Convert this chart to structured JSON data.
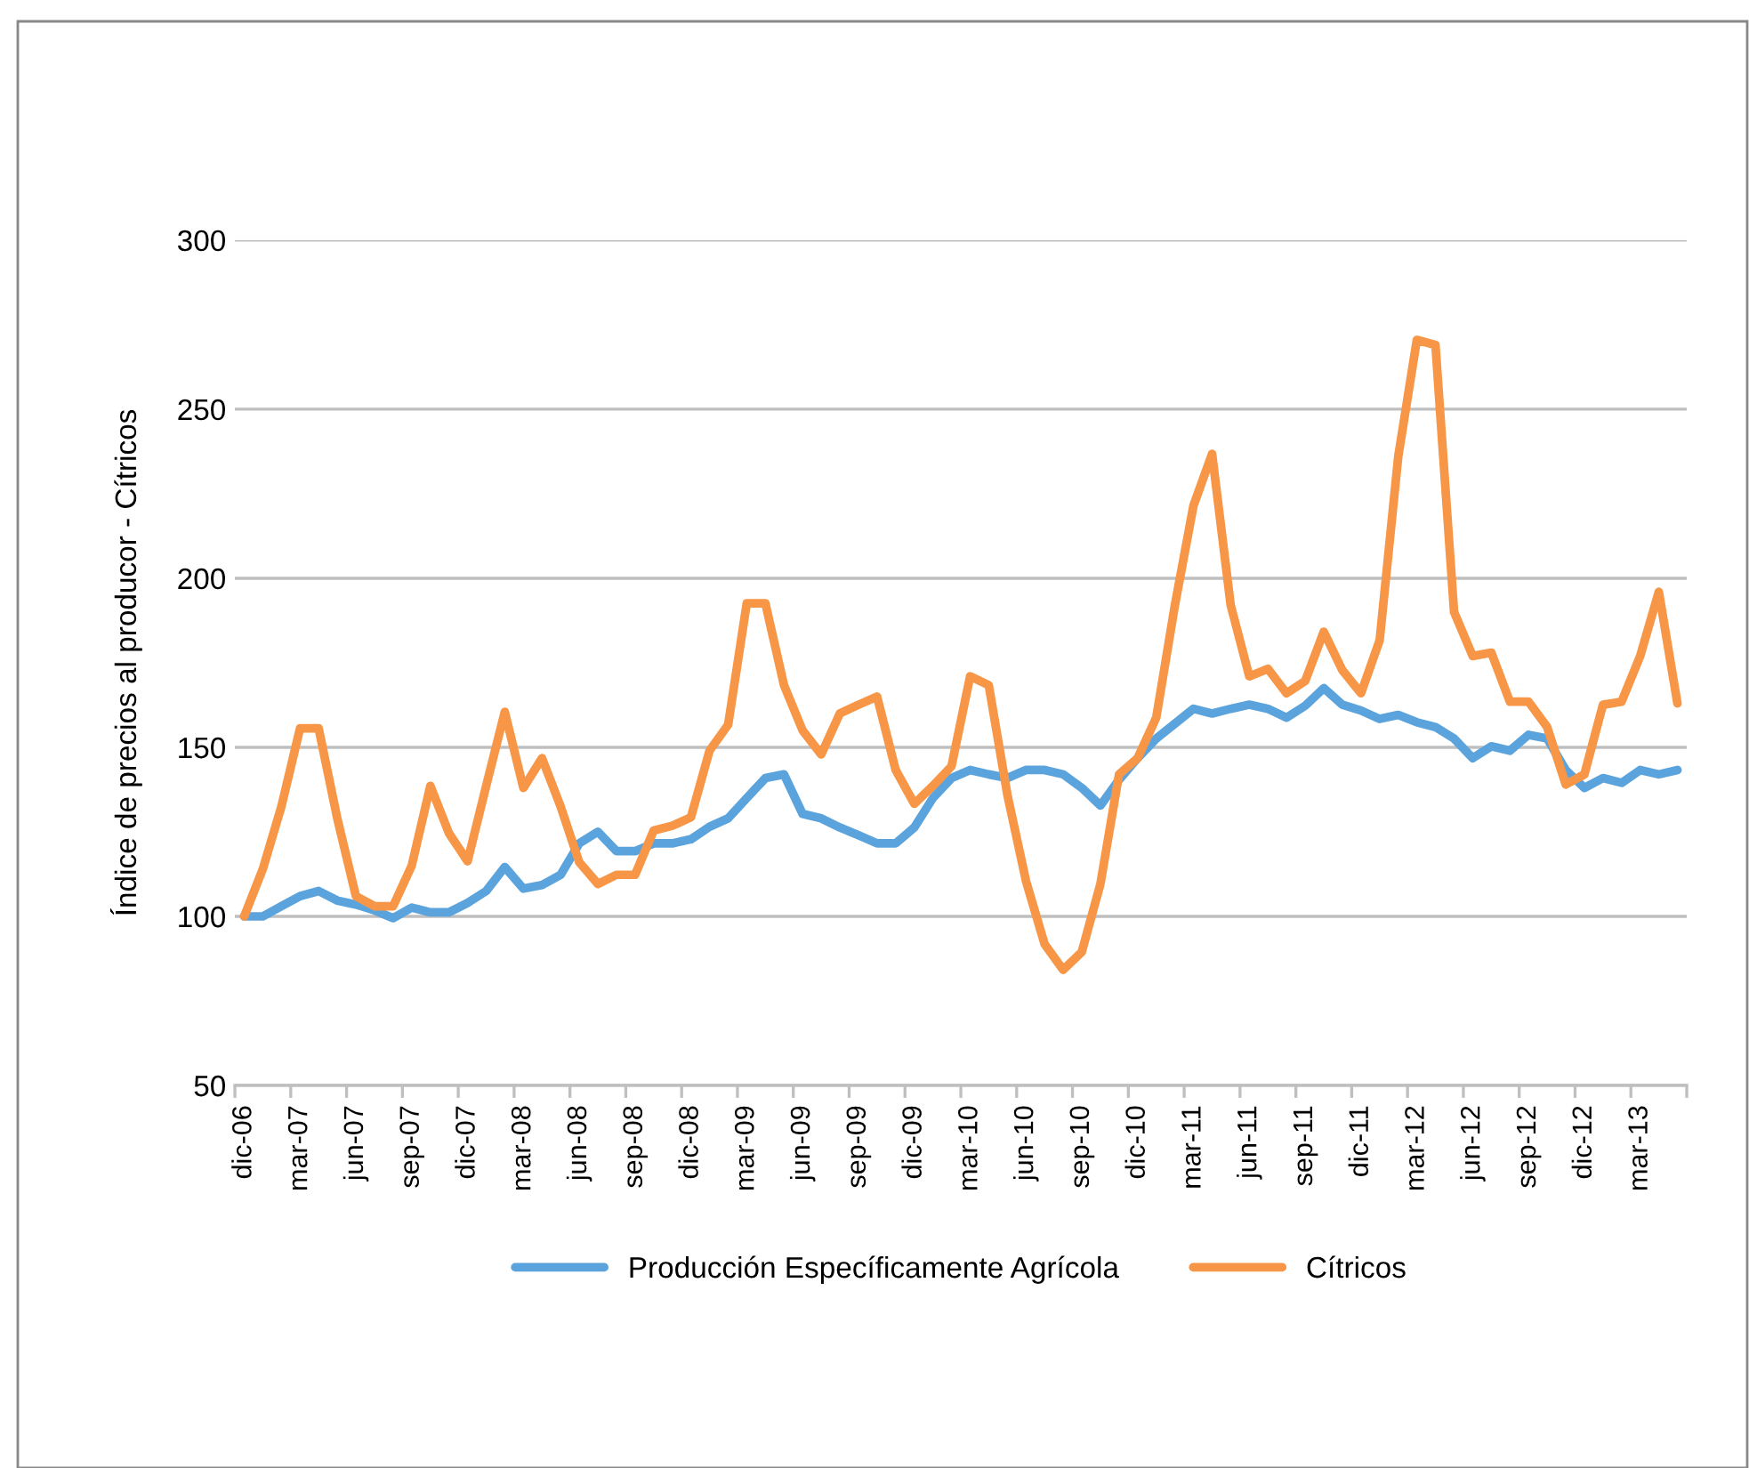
{
  "chart_data": {
    "type": "line",
    "ylabel": "Índice de precios al producor - Cítricos",
    "categories": [
      "dic-06",
      null,
      null,
      "mar-07",
      null,
      null,
      "jun-07",
      null,
      null,
      "sep-07",
      null,
      null,
      "dic-07",
      null,
      null,
      "mar-08",
      null,
      null,
      "jun-08",
      null,
      null,
      "sep-08",
      null,
      null,
      "dic-08",
      null,
      null,
      "mar-09",
      null,
      null,
      "jun-09",
      null,
      null,
      "sep-09",
      null,
      null,
      "dic-09",
      null,
      null,
      "mar-10",
      null,
      null,
      "jun-10",
      null,
      null,
      "sep-10",
      null,
      null,
      "dic-10",
      null,
      null,
      "mar-11",
      null,
      null,
      "jun-11",
      null,
      null,
      "sep-11",
      null,
      null,
      "dic-11",
      null,
      null,
      "mar-12",
      null,
      null,
      "jun-12",
      null,
      null,
      "sep-12",
      null,
      null,
      "dic-12",
      null,
      null,
      "mar-13",
      null,
      null
    ],
    "series": [
      {
        "name": "Producción Específicamente Agrícola",
        "color": "#5ba3dc",
        "values": [
          100,
          100,
          103,
          106,
          107.5,
          104.7,
          103.5,
          101.8,
          99.5,
          102.6,
          101.2,
          101.2,
          104,
          107.5,
          114.6,
          108.2,
          109.3,
          112.3,
          121.6,
          125,
          119.3,
          119.3,
          121.6,
          121.6,
          122.8,
          126.5,
          129,
          135,
          140.9,
          142,
          130.3,
          129,
          126.3,
          124,
          121.6,
          121.6,
          126.3,
          135,
          140.9,
          143.3,
          142,
          140.9,
          143.3,
          143.3,
          142,
          138,
          132.8,
          140.4,
          146.8,
          152.6,
          157,
          161.4,
          160,
          161.4,
          162.6,
          161.4,
          158.8,
          162.3,
          167.5,
          162.6,
          160.9,
          158.4,
          159.6,
          157.4,
          156,
          152.6,
          146.8,
          150.3,
          149,
          153.7,
          152.6,
          143.3,
          138,
          140.9,
          139.5,
          143.3,
          142,
          143.3
        ]
      },
      {
        "name": "Cítricos",
        "color": "#f79646",
        "values": [
          100,
          114,
          132.5,
          155.6,
          155.6,
          129,
          106,
          103,
          103,
          115,
          138.6,
          124.6,
          116.3,
          138.6,
          160.5,
          138,
          146.8,
          132.5,
          116,
          109.6,
          112.3,
          112.3,
          125.4,
          126.8,
          129.3,
          149,
          156.7,
          192.6,
          192.6,
          168.4,
          155,
          147.9,
          160,
          162.6,
          165,
          143.3,
          133.3,
          138.6,
          144.4,
          171,
          168.4,
          136,
          110.5,
          91.8,
          84.2,
          89.5,
          109.6,
          142,
          146.8,
          158.8,
          192,
          221.5,
          236.8,
          192,
          171,
          173.2,
          166,
          169.6,
          184.2,
          172.8,
          166,
          181.6,
          236,
          270.5,
          269,
          190,
          177,
          178,
          163.5,
          163.5,
          156,
          139,
          142,
          162.6,
          163.5,
          177,
          196,
          163
        ]
      }
    ],
    "ylim": [
      50,
      300
    ],
    "yticks": [
      50,
      100,
      150,
      200,
      250,
      300
    ],
    "grid": "y",
    "legend": "bottom",
    "marker": "none",
    "line_style": "solid"
  }
}
